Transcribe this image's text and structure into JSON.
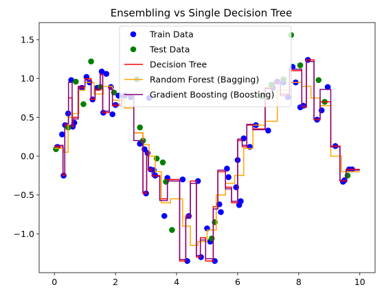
{
  "chart_data": {
    "type": "scatter",
    "title": "Ensembling vs Single Decision Tree",
    "xlabel": "",
    "ylabel": "",
    "xlim": [
      -0.5,
      10.5
    ],
    "ylim": [
      -1.5,
      1.72
    ],
    "xticks": [
      0,
      2,
      4,
      6,
      8,
      10
    ],
    "xtick_labels": [
      "0",
      "2",
      "4",
      "6",
      "8",
      "10"
    ],
    "yticks": [
      -1.0,
      -0.5,
      0.0,
      0.5,
      1.0,
      1.5
    ],
    "ytick_labels": [
      "−1.0",
      "−0.5",
      "0.0",
      "0.5",
      "1.0",
      "1.5"
    ],
    "grid": false,
    "legend_position": "top-center",
    "series": [
      {
        "name": "Train Data",
        "kind": "scatter",
        "color": "#0000ff",
        "x": [
          0.1,
          0.25,
          0.3,
          0.35,
          0.45,
          0.55,
          0.6,
          0.65,
          0.9,
          1.05,
          1.15,
          1.25,
          1.4,
          1.55,
          1.6,
          1.7,
          1.85,
          1.9,
          2.0,
          2.1,
          2.3,
          2.5,
          2.8,
          2.95,
          3.0,
          3.05,
          3.1,
          3.15,
          3.25,
          3.3,
          3.6,
          3.7,
          4.2,
          4.35,
          4.4,
          4.7,
          4.8,
          5.0,
          5.1,
          5.25,
          5.4,
          5.45,
          5.65,
          5.7,
          5.95,
          6.0,
          6.05,
          6.1,
          6.2,
          6.4,
          6.6,
          7.0,
          7.15,
          7.3,
          7.5,
          7.65,
          7.8,
          7.9,
          8.05,
          8.15,
          8.3,
          8.6,
          8.75,
          8.95,
          9.2,
          9.45,
          9.5,
          9.65,
          9.75
        ],
        "y": [
          0.12,
          0.28,
          -0.25,
          0.4,
          0.55,
          0.98,
          0.38,
          0.43,
          0.88,
          1.02,
          0.95,
          0.73,
          0.88,
          1.09,
          0.56,
          1.06,
          0.89,
          0.54,
          0.66,
          0.78,
          0.78,
          0.76,
          0.16,
          0.09,
          -0.48,
          0.04,
          0.75,
          -0.17,
          -0.18,
          -0.25,
          -0.77,
          -0.28,
          -0.3,
          -1.35,
          -0.77,
          -0.32,
          -1.3,
          -0.93,
          -1.1,
          -1.35,
          -0.62,
          -0.72,
          -0.16,
          -0.27,
          -0.4,
          -0.05,
          -0.63,
          -0.58,
          0.23,
          0.12,
          0.4,
          0.33,
          0.88,
          0.96,
          0.95,
          0.76,
          1.15,
          0.95,
          0.63,
          0.65,
          1.24,
          0.47,
          0.59,
          0.89,
          0.13,
          -0.33,
          -0.31,
          -0.17,
          -0.17
        ]
      },
      {
        "name": "Test Data",
        "kind": "scatter",
        "color": "#008000",
        "x": [
          0.05,
          0.45,
          0.7,
          0.95,
          1.2,
          1.5,
          1.95,
          2.7,
          2.8,
          2.9,
          3.35,
          3.55,
          3.65,
          3.85,
          5.15,
          5.25,
          6.8,
          7.1,
          7.5,
          7.75,
          8.05,
          8.65,
          8.85,
          9.6
        ],
        "y": [
          0.09,
          0.37,
          0.96,
          0.67,
          1.22,
          0.89,
          0.82,
          0.99,
          0.37,
          0.2,
          -0.03,
          -0.08,
          -0.33,
          -0.95,
          -1.06,
          -0.85,
          0.77,
          0.92,
          0.99,
          1.56,
          1.17,
          0.98,
          0.7,
          -0.25
        ]
      },
      {
        "name": "Decision Tree",
        "kind": "step",
        "color": "#ff0000",
        "x": [
          0.0,
          0.28,
          0.28,
          0.34,
          0.34,
          0.46,
          0.46,
          0.58,
          0.58,
          0.63,
          0.63,
          0.78,
          0.78,
          1.0,
          1.0,
          1.2,
          1.2,
          1.33,
          1.33,
          1.5,
          1.5,
          1.58,
          1.58,
          1.8,
          1.8,
          1.9,
          1.9,
          2.2,
          2.2,
          2.6,
          2.6,
          2.9,
          2.9,
          3.02,
          3.02,
          3.08,
          3.08,
          3.2,
          3.2,
          3.45,
          3.45,
          3.7,
          3.7,
          4.1,
          4.1,
          4.3,
          4.3,
          4.45,
          4.45,
          4.65,
          4.65,
          4.78,
          4.78,
          4.95,
          4.95,
          5.2,
          5.2,
          5.35,
          5.35,
          5.6,
          5.6,
          5.8,
          5.8,
          6.0,
          6.0,
          6.15,
          6.15,
          6.3,
          6.3,
          6.5,
          6.5,
          6.9,
          6.9,
          7.2,
          7.2,
          7.4,
          7.4,
          7.7,
          7.7,
          8.1,
          8.1,
          8.25,
          8.25,
          8.5,
          8.5,
          8.7,
          8.7,
          9.05,
          9.05,
          9.35,
          9.35,
          9.55,
          9.55,
          10.0
        ],
        "y": [
          0.12,
          0.12,
          -0.25,
          -0.25,
          0.4,
          0.4,
          0.75,
          0.75,
          0.38,
          0.38,
          0.5,
          0.5,
          0.88,
          0.88,
          1.0,
          1.0,
          0.73,
          0.73,
          0.85,
          0.85,
          1.05,
          1.05,
          0.56,
          0.56,
          0.88,
          0.88,
          0.65,
          0.65,
          0.78,
          0.78,
          0.3,
          0.3,
          -0.48,
          -0.48,
          0.04,
          0.04,
          -0.18,
          -0.18,
          -0.25,
          -0.25,
          -0.55,
          -0.55,
          -0.3,
          -0.3,
          -1.35,
          -1.35,
          -0.77,
          -0.77,
          -0.32,
          -0.32,
          -1.3,
          -1.3,
          -1.05,
          -1.05,
          -1.35,
          -1.35,
          -0.65,
          -0.65,
          -0.2,
          -0.2,
          -0.4,
          -0.4,
          -0.6,
          -0.6,
          0.2,
          0.2,
          0.12,
          0.12,
          0.4,
          0.4,
          0.35,
          0.35,
          0.88,
          0.88,
          0.95,
          0.95,
          0.8,
          0.8,
          1.1,
          1.1,
          0.64,
          0.64,
          1.24,
          1.24,
          0.47,
          0.47,
          0.7,
          0.7,
          0.13,
          0.13,
          -0.32,
          -0.32,
          -0.17,
          -0.17
        ]
      },
      {
        "name": "Random Forest (Bagging)",
        "kind": "step",
        "color": "#ffa500",
        "x": [
          0.0,
          0.3,
          0.3,
          0.45,
          0.45,
          0.6,
          0.6,
          0.8,
          0.8,
          1.0,
          1.0,
          1.3,
          1.3,
          1.6,
          1.6,
          1.9,
          1.9,
          2.3,
          2.3,
          2.6,
          2.6,
          2.9,
          2.9,
          3.1,
          3.1,
          3.3,
          3.3,
          3.5,
          3.5,
          3.8,
          3.8,
          4.2,
          4.2,
          4.45,
          4.45,
          4.7,
          4.7,
          5.0,
          5.0,
          5.3,
          5.3,
          5.6,
          5.6,
          5.9,
          5.9,
          6.2,
          6.2,
          6.5,
          6.5,
          6.9,
          6.9,
          7.3,
          7.3,
          7.7,
          7.7,
          8.1,
          8.1,
          8.4,
          8.4,
          8.7,
          8.7,
          9.05,
          9.05,
          9.4,
          9.4,
          10.0
        ],
        "y": [
          0.1,
          0.1,
          0.05,
          0.05,
          0.5,
          0.5,
          0.55,
          0.55,
          0.85,
          0.85,
          0.95,
          0.95,
          0.8,
          0.8,
          0.9,
          0.9,
          0.72,
          0.72,
          0.62,
          0.62,
          0.3,
          0.3,
          0.15,
          0.15,
          0.0,
          0.0,
          -0.2,
          -0.2,
          -0.6,
          -0.6,
          -0.55,
          -0.55,
          -0.9,
          -0.9,
          -1.15,
          -1.15,
          -1.1,
          -1.1,
          -0.95,
          -0.95,
          -0.5,
          -0.5,
          -0.35,
          -0.35,
          -0.25,
          -0.25,
          0.1,
          0.1,
          0.4,
          0.4,
          0.45,
          0.45,
          0.85,
          0.85,
          0.95,
          0.95,
          0.9,
          0.9,
          0.75,
          0.75,
          0.65,
          0.65,
          0.0,
          0.0,
          -0.2,
          -0.2
        ]
      },
      {
        "name": "Gradient Boosting (Boosting)",
        "kind": "step",
        "color": "#800080",
        "x": [
          0.0,
          0.28,
          0.28,
          0.34,
          0.34,
          0.46,
          0.46,
          0.58,
          0.58,
          0.63,
          0.63,
          0.78,
          0.78,
          1.0,
          1.0,
          1.2,
          1.2,
          1.33,
          1.33,
          1.5,
          1.5,
          1.58,
          1.58,
          1.8,
          1.8,
          1.9,
          1.9,
          2.2,
          2.2,
          2.6,
          2.6,
          2.9,
          2.9,
          3.02,
          3.02,
          3.08,
          3.08,
          3.2,
          3.2,
          3.45,
          3.45,
          3.7,
          3.7,
          4.1,
          4.1,
          4.3,
          4.3,
          4.45,
          4.45,
          4.65,
          4.65,
          4.78,
          4.78,
          4.95,
          4.95,
          5.2,
          5.2,
          5.35,
          5.35,
          5.6,
          5.6,
          5.8,
          5.8,
          6.0,
          6.0,
          6.15,
          6.15,
          6.3,
          6.3,
          6.5,
          6.5,
          6.9,
          6.9,
          7.2,
          7.2,
          7.4,
          7.4,
          7.7,
          7.7,
          8.1,
          8.1,
          8.25,
          8.25,
          8.5,
          8.5,
          8.7,
          8.7,
          9.05,
          9.05,
          9.35,
          9.35,
          9.55,
          9.55,
          10.0
        ],
        "y": [
          0.14,
          0.14,
          -0.22,
          -0.22,
          0.42,
          0.42,
          0.95,
          0.95,
          0.4,
          0.4,
          0.48,
          0.48,
          0.9,
          0.9,
          0.98,
          0.98,
          0.75,
          0.75,
          0.87,
          0.87,
          1.06,
          1.06,
          0.58,
          0.58,
          0.86,
          0.86,
          0.67,
          0.67,
          0.78,
          0.78,
          0.2,
          0.2,
          -0.46,
          -0.46,
          0.06,
          0.06,
          -0.16,
          -0.16,
          -0.26,
          -0.26,
          -0.57,
          -0.57,
          -0.32,
          -0.32,
          -1.33,
          -1.33,
          -0.8,
          -0.8,
          -0.35,
          -0.35,
          -1.28,
          -1.28,
          -1.08,
          -1.08,
          -1.32,
          -1.32,
          -0.68,
          -0.68,
          -0.18,
          -0.18,
          -0.42,
          -0.42,
          -0.58,
          -0.58,
          0.22,
          0.22,
          0.14,
          0.14,
          0.41,
          0.41,
          0.34,
          0.34,
          0.87,
          0.87,
          0.96,
          0.96,
          0.78,
          0.78,
          1.12,
          1.12,
          0.63,
          0.63,
          1.22,
          1.22,
          0.48,
          0.48,
          0.86,
          0.86,
          0.12,
          0.12,
          -0.31,
          -0.31,
          -0.18,
          -0.18
        ]
      }
    ]
  }
}
